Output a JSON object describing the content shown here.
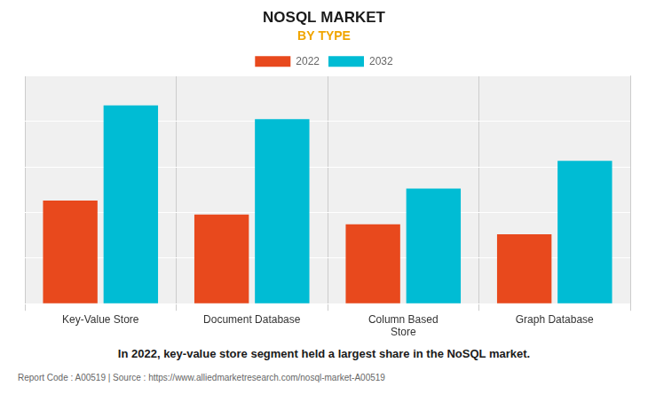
{
  "chart_data": {
    "type": "bar",
    "title": "NOSQL MARKET",
    "subtitle": "BY TYPE",
    "categories": [
      "Key-Value Store",
      "Document Database",
      "Column Based\nStore",
      "Graph Database"
    ],
    "series": [
      {
        "name": "2022",
        "color": "#e8491d",
        "values": [
          0.52,
          0.45,
          0.4,
          0.35
        ]
      },
      {
        "name": "2032",
        "color": "#00bcd4",
        "values": [
          1.0,
          0.93,
          0.58,
          0.72
        ]
      }
    ],
    "ylim": [
      0,
      1.15
    ],
    "yticks": [
      0,
      0.23,
      0.46,
      0.69,
      0.92,
      1.15
    ],
    "grid": true,
    "legend": "top",
    "tick_labels": "x",
    "annotations": [
      "In 2022, key-value store segment held a largest share in the NoSQL market.",
      "Report Code : A00519  |  Source : https://www.alliedmarketresearch.com/nosql-market-A00519"
    ]
  }
}
